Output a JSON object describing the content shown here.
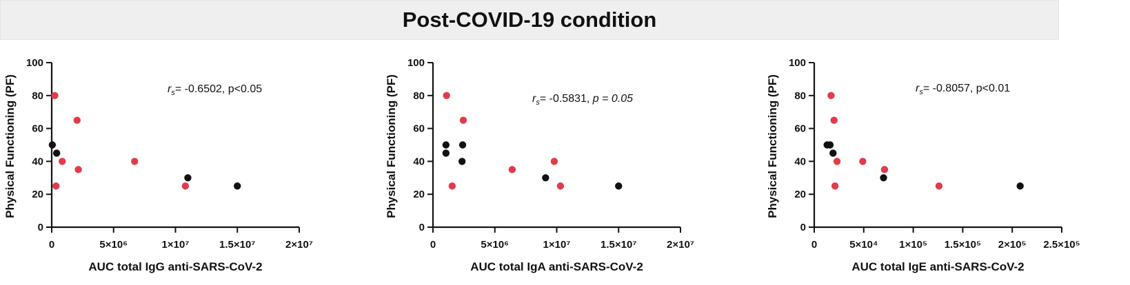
{
  "page_title": "Post-COVID-19 condition",
  "colors": {
    "red": "#e23b4a",
    "black": "#111111",
    "title_bg": "#efefef"
  },
  "chart_data": [
    {
      "type": "scatter",
      "xlabel": "AUC total IgG anti-SARS-CoV-2",
      "ylabel": "Physical Functioning (PF)",
      "xlim": [
        0,
        20000000
      ],
      "ylim": [
        0,
        100
      ],
      "x_ticks": [
        0,
        5000000,
        10000000,
        15000000,
        20000000
      ],
      "x_tick_labels": [
        "0",
        "5×10⁶",
        "1×10⁷",
        "1.5×10⁷",
        "2×10⁷"
      ],
      "y_ticks": [
        0,
        20,
        40,
        60,
        80,
        100
      ],
      "y_tick_labels": [
        "0",
        "20",
        "40",
        "60",
        "80",
        "100"
      ],
      "stat_prefix": "r",
      "stat_sub": "s",
      "stat_value": "= -0.6502, p<0.05",
      "stat_p_italic": "",
      "series": [
        {
          "name": "red",
          "color": "#e23b4a",
          "x": [
            250000,
            350000,
            850000,
            2050000,
            2150000,
            6700000,
            10800000
          ],
          "y": [
            80,
            25,
            40,
            65,
            35,
            40,
            25
          ]
        },
        {
          "name": "black",
          "color": "#111111",
          "x": [
            50000,
            400000,
            11000000,
            15000000
          ],
          "y": [
            50,
            45,
            30,
            25
          ]
        }
      ]
    },
    {
      "type": "scatter",
      "xlabel": "AUC total IgA anti-SARS-CoV-2",
      "ylabel": "Physical Functioning (PF)",
      "xlim": [
        0,
        20000000
      ],
      "ylim": [
        0,
        100
      ],
      "x_ticks": [
        0,
        5000000,
        10000000,
        15000000,
        20000000
      ],
      "x_tick_labels": [
        "0",
        "5×10⁶",
        "1×10⁷",
        "1.5×10⁷",
        "2×10⁷"
      ],
      "y_ticks": [
        0,
        20,
        40,
        60,
        80,
        100
      ],
      "y_tick_labels": [
        "0",
        "20",
        "40",
        "60",
        "80",
        "100"
      ],
      "stat_prefix": "r",
      "stat_sub": "s",
      "stat_value": "= -0.5831, ",
      "stat_p_italic": "p = 0.05",
      "series": [
        {
          "name": "red",
          "color": "#e23b4a",
          "x": [
            1100000,
            1550000,
            2450000,
            6400000,
            9800000,
            10300000
          ],
          "y": [
            80,
            25,
            65,
            35,
            40,
            25
          ]
        },
        {
          "name": "black",
          "color": "#111111",
          "x": [
            1050000,
            1050000,
            2350000,
            2400000,
            9100000,
            15000000
          ],
          "y": [
            50,
            45,
            40,
            50,
            30,
            25
          ]
        }
      ]
    },
    {
      "type": "scatter",
      "xlabel": "AUC total IgE anti-SARS-CoV-2",
      "ylabel": "Physical Functioning (PF)",
      "xlim": [
        0,
        250000
      ],
      "ylim": [
        0,
        100
      ],
      "x_ticks": [
        0,
        50000,
        100000,
        150000,
        200000,
        250000
      ],
      "x_tick_labels": [
        "0",
        "5×10⁴",
        "1×10⁵",
        "1.5×10⁵",
        "2×10⁵",
        "2.5×10⁵"
      ],
      "y_ticks": [
        0,
        20,
        40,
        60,
        80,
        100
      ],
      "y_tick_labels": [
        "0",
        "20",
        "40",
        "60",
        "80",
        "100"
      ],
      "stat_prefix": "r",
      "stat_sub": "s",
      "stat_value": "= -0.8057, p<0.01",
      "stat_p_italic": "",
      "series": [
        {
          "name": "red",
          "color": "#e23b4a",
          "x": [
            17000,
            20000,
            21000,
            23000,
            49000,
            71000,
            126000
          ],
          "y": [
            80,
            65,
            25,
            40,
            40,
            35,
            25
          ]
        },
        {
          "name": "black",
          "color": "#111111",
          "x": [
            13000,
            16000,
            19000,
            70000,
            208000
          ],
          "y": [
            50,
            50,
            45,
            30,
            25
          ]
        }
      ]
    }
  ]
}
